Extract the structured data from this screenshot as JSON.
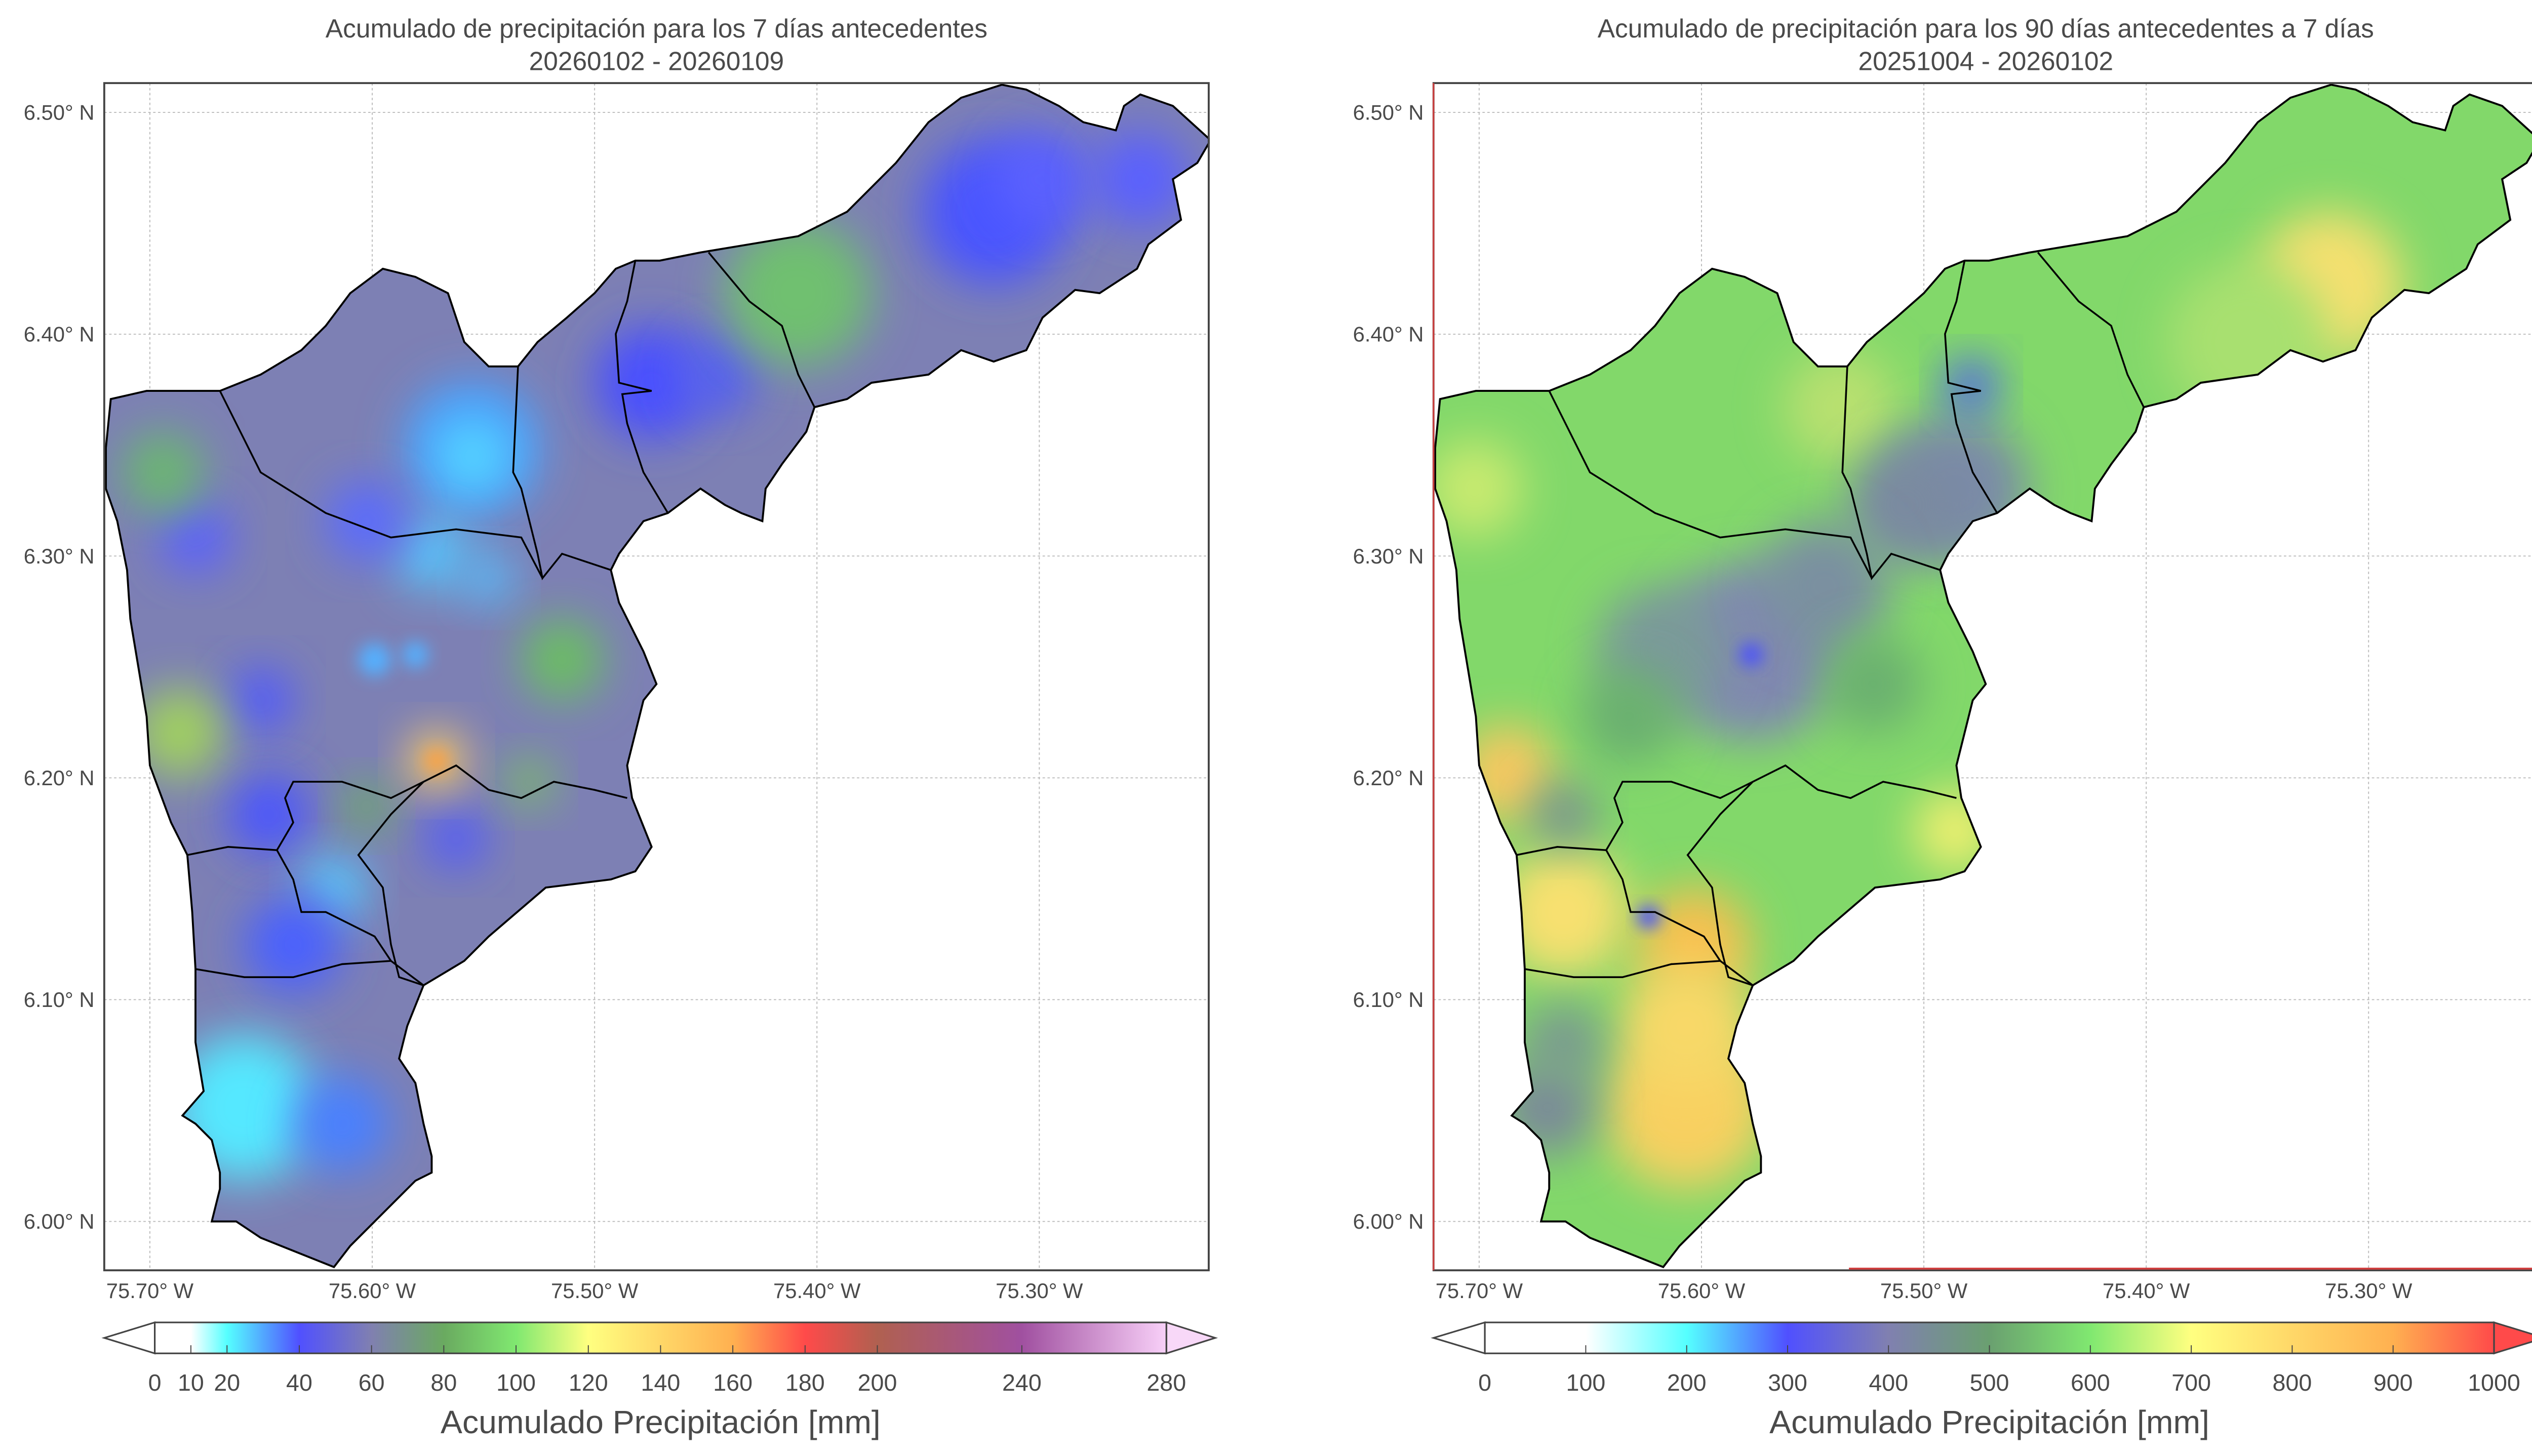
{
  "maps": [
    {
      "title": "Acumulado de precipitación para los 7 días antecedentes",
      "subtitle": "20260102 - 20260109",
      "lat_ticks": [
        6.5,
        6.4,
        6.3,
        6.2,
        6.1,
        6.0
      ],
      "lat_labels": [
        "6.50° N",
        "6.40° N",
        "6.30° N",
        "6.20° N",
        "6.10° N",
        "6.00° N"
      ],
      "lon_ticks": [
        -75.7,
        -75.6,
        -75.5,
        -75.4,
        -75.3
      ],
      "lon_labels": [
        "75.70° W",
        "75.60° W",
        "75.50° W",
        "75.40° W",
        "75.30° W"
      ],
      "gridlines": true,
      "colorbar": {
        "label": "Acumulado Precipitación [mm]",
        "min": 0,
        "max": 280,
        "ticks": [
          0,
          10,
          20,
          40,
          60,
          80,
          100,
          120,
          140,
          160,
          180,
          200,
          240,
          280
        ],
        "tick_labels": [
          "0",
          "10",
          "20",
          "40",
          "60",
          "80",
          "100",
          "120",
          "140",
          "160",
          "180",
          "200",
          "240",
          "280"
        ],
        "extend": "both",
        "under_color": "#ffffff",
        "over_color": "#f8d8f8",
        "stops": [
          {
            "value": 0,
            "color": "#ffffff"
          },
          {
            "value": 10,
            "color": "#ffffff"
          },
          {
            "value": 20,
            "color": "#55ffff"
          },
          {
            "value": 40,
            "color": "#5050ff"
          },
          {
            "value": 60,
            "color": "#8080b0"
          },
          {
            "value": 80,
            "color": "#6aaa60"
          },
          {
            "value": 100,
            "color": "#80e870"
          },
          {
            "value": 120,
            "color": "#ffff80"
          },
          {
            "value": 160,
            "color": "#ffb050"
          },
          {
            "value": 180,
            "color": "#ff4a4a"
          },
          {
            "value": 200,
            "color": "#b06050"
          },
          {
            "value": 240,
            "color": "#a050a0"
          },
          {
            "value": 280,
            "color": "#f8d0f8"
          }
        ]
      }
    },
    {
      "title": "Acumulado de precipitación para los 90 días antecedentes a 7 días",
      "subtitle": "20251004 - 20260102",
      "lat_ticks": [
        6.5,
        6.4,
        6.3,
        6.2,
        6.1,
        6.0
      ],
      "lat_labels": [
        "6.50° N",
        "6.40° N",
        "6.30° N",
        "6.20° N",
        "6.10° N",
        "6.00° N"
      ],
      "lon_ticks": [
        -75.7,
        -75.6,
        -75.5,
        -75.4,
        -75.3
      ],
      "lon_labels": [
        "75.70° W",
        "75.60° W",
        "75.50° W",
        "75.40° W",
        "75.30° W"
      ],
      "gridlines": true,
      "colorbar": {
        "label": "Acumulado Precipitación [mm]",
        "min": 0,
        "max": 1000,
        "ticks": [
          0,
          100,
          200,
          300,
          400,
          500,
          600,
          700,
          800,
          900,
          1000
        ],
        "tick_labels": [
          "0",
          "100",
          "200",
          "300",
          "400",
          "500",
          "600",
          "700",
          "800",
          "900",
          "1000"
        ],
        "extend": "both",
        "under_color": "#ffffff",
        "over_color": "#ff4a4a",
        "stops": [
          {
            "value": 0,
            "color": "#ffffff"
          },
          {
            "value": 100,
            "color": "#ffffff"
          },
          {
            "value": 200,
            "color": "#55ffff"
          },
          {
            "value": 300,
            "color": "#5050ff"
          },
          {
            "value": 400,
            "color": "#8080b0"
          },
          {
            "value": 500,
            "color": "#6aa070"
          },
          {
            "value": 600,
            "color": "#80e870"
          },
          {
            "value": 700,
            "color": "#ffff80"
          },
          {
            "value": 900,
            "color": "#ffb050"
          },
          {
            "value": 1000,
            "color": "#ff4a4a"
          }
        ]
      }
    }
  ]
}
